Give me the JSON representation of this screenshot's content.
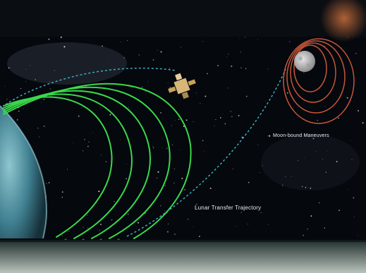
{
  "labels": {
    "moon_bound": "Moon-bound Maneuvers",
    "lunar_transfer": "Lunar Transfer Trajectory"
  },
  "colors": {
    "space_background": "#05080d",
    "earth_bound_orbits": "#39d94a",
    "transfer_trajectory": "#3fb6c9",
    "moon_bound_orbits": "#c8563a",
    "page_background": "#ffffff"
  },
  "icons": [
    "earth-icon",
    "moon-icon",
    "spacecraft-icon"
  ]
}
